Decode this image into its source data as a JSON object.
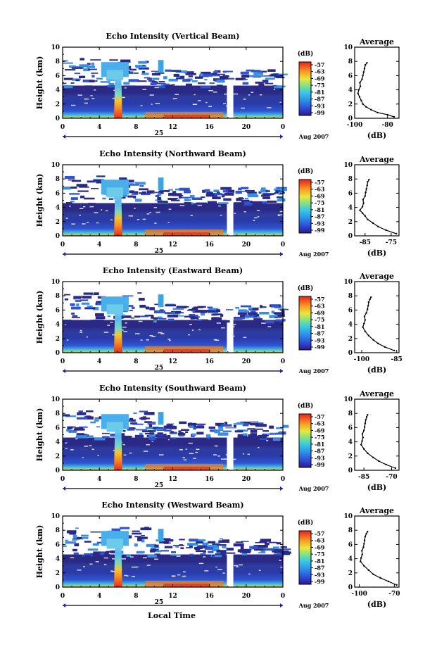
{
  "figure": {
    "y_label": "Height (km)",
    "x_label": "Local Time",
    "date_day": "25",
    "date_month_year": "Aug 2007",
    "colorbar_unit": "(dB)",
    "average_title": "Average",
    "average_xlabel": "(dB)"
  },
  "chart_data": [
    {
      "type": "heatmap",
      "title": "Echo Intensity (Vertical Beam)",
      "x_ticks": [
        "0",
        "4",
        "8",
        "12",
        "16",
        "20",
        "0"
      ],
      "y_ticks": [
        "0",
        "2",
        "4",
        "6",
        "8",
        "10"
      ],
      "xlim": [
        0,
        24
      ],
      "ylim": [
        0,
        10
      ],
      "colorbar_ticks": [
        "-57",
        "-63",
        "-69",
        "-75",
        "-81",
        "-87",
        "-93",
        "-99"
      ],
      "profile": {
        "title": "Average",
        "xlabel": "(dB)",
        "x_ticks": [
          "-100",
          "-80"
        ],
        "xlim": [
          -100,
          -73
        ],
        "y_ticks": [
          "0",
          "2",
          "4",
          "6",
          "8",
          "10"
        ],
        "ylim": [
          0,
          10
        ],
        "points": [
          [
            -76,
            0.2
          ],
          [
            -80,
            0.5
          ],
          [
            -86,
            0.8
          ],
          [
            -90,
            1.2
          ],
          [
            -93,
            1.6
          ],
          [
            -95,
            2.0
          ],
          [
            -96,
            2.5
          ],
          [
            -97,
            3.0
          ],
          [
            -98,
            3.5
          ],
          [
            -97.5,
            4.0
          ],
          [
            -96.5,
            4.5
          ],
          [
            -96.8,
            5.0
          ],
          [
            -95.5,
            5.5
          ],
          [
            -95,
            6.0
          ],
          [
            -94.5,
            6.5
          ],
          [
            -94,
            7.0
          ],
          [
            -93.5,
            7.5
          ],
          [
            -92.5,
            7.8
          ]
        ]
      }
    },
    {
      "type": "heatmap",
      "title": "Echo Intensity (Northward Beam)",
      "x_ticks": [
        "0",
        "4",
        "8",
        "12",
        "16",
        "20",
        "0"
      ],
      "y_ticks": [
        "0",
        "2",
        "4",
        "6",
        "8",
        "10"
      ],
      "xlim": [
        0,
        24
      ],
      "ylim": [
        0,
        10
      ],
      "colorbar_ticks": [
        "-57",
        "-63",
        "-69",
        "-75",
        "-81",
        "-87",
        "-93",
        "-99"
      ],
      "profile": {
        "title": "Average",
        "xlabel": "(dB)",
        "x_ticks": [
          "-85",
          "-75"
        ],
        "xlim": [
          -89,
          -72
        ],
        "y_ticks": [
          "0",
          "2",
          "4",
          "6",
          "8",
          "10"
        ],
        "ylim": [
          0,
          10
        ],
        "points": [
          [
            -73,
            0.3
          ],
          [
            -77,
            0.8
          ],
          [
            -80,
            1.3
          ],
          [
            -82,
            1.8
          ],
          [
            -84,
            2.3
          ],
          [
            -85,
            2.8
          ],
          [
            -86,
            3.2
          ],
          [
            -87,
            3.6
          ],
          [
            -86,
            4.1
          ],
          [
            -85.6,
            4.6
          ],
          [
            -85.8,
            5.1
          ],
          [
            -85,
            5.6
          ],
          [
            -84.8,
            6.1
          ],
          [
            -84.5,
            6.6
          ],
          [
            -84.2,
            7.1
          ],
          [
            -84,
            7.6
          ],
          [
            -83.5,
            7.9
          ]
        ]
      }
    },
    {
      "type": "heatmap",
      "title": "Echo Intensity (Eastward Beam)",
      "x_ticks": [
        "0",
        "4",
        "8",
        "12",
        "16",
        "20",
        "0"
      ],
      "y_ticks": [
        "0",
        "2",
        "4",
        "6",
        "8",
        "10"
      ],
      "xlim": [
        0,
        24
      ],
      "ylim": [
        0,
        10
      ],
      "colorbar_ticks": [
        "-57",
        "-63",
        "-69",
        "-75",
        "-81",
        "-87",
        "-93",
        "-99"
      ],
      "profile": {
        "title": "Average",
        "xlabel": "(dB)",
        "x_ticks": [
          "-100",
          "-85"
        ],
        "xlim": [
          -103,
          -84
        ],
        "y_ticks": [
          "0",
          "2",
          "4",
          "6",
          "8",
          "10"
        ],
        "ylim": [
          0,
          10
        ],
        "points": [
          [
            -86,
            0.3
          ],
          [
            -90,
            0.8
          ],
          [
            -93,
            1.3
          ],
          [
            -95,
            1.8
          ],
          [
            -97,
            2.4
          ],
          [
            -98.5,
            3.0
          ],
          [
            -99.5,
            3.6
          ],
          [
            -99,
            4.1
          ],
          [
            -98.5,
            4.6
          ],
          [
            -98.8,
            5.1
          ],
          [
            -98,
            5.6
          ],
          [
            -97.5,
            6.1
          ],
          [
            -97.2,
            6.6
          ],
          [
            -97,
            7.1
          ],
          [
            -96.5,
            7.5
          ],
          [
            -96,
            7.8
          ]
        ]
      }
    },
    {
      "type": "heatmap",
      "title": "Echo Intensity (Southward Beam)",
      "x_ticks": [
        "0",
        "4",
        "8",
        "12",
        "16",
        "20",
        "0"
      ],
      "y_ticks": [
        "0",
        "2",
        "4",
        "6",
        "8",
        "10"
      ],
      "xlim": [
        0,
        24
      ],
      "ylim": [
        0,
        10
      ],
      "colorbar_ticks": [
        "-57",
        "-63",
        "-69",
        "-75",
        "-81",
        "-87",
        "-93",
        "-99"
      ],
      "profile": {
        "title": "Average",
        "xlabel": "(dB)",
        "x_ticks": [
          "-85",
          "-70"
        ],
        "xlim": [
          -90,
          -66
        ],
        "y_ticks": [
          "0",
          "2",
          "4",
          "6",
          "8",
          "10"
        ],
        "ylim": [
          0,
          10
        ],
        "points": [
          [
            -68,
            0.3
          ],
          [
            -73,
            0.8
          ],
          [
            -77,
            1.3
          ],
          [
            -80,
            1.8
          ],
          [
            -83,
            2.4
          ],
          [
            -85,
            3.0
          ],
          [
            -86.5,
            3.6
          ],
          [
            -86,
            4.1
          ],
          [
            -85.5,
            4.6
          ],
          [
            -85.8,
            5.1
          ],
          [
            -85,
            5.6
          ],
          [
            -84.6,
            6.1
          ],
          [
            -84.3,
            6.6
          ],
          [
            -84,
            7.1
          ],
          [
            -83.5,
            7.5
          ],
          [
            -83,
            7.8
          ]
        ]
      }
    },
    {
      "type": "heatmap",
      "title": "Echo Intensity (Westward Beam)",
      "x_ticks": [
        "0",
        "4",
        "8",
        "12",
        "16",
        "20",
        "0"
      ],
      "y_ticks": [
        "0",
        "2",
        "4",
        "6",
        "8",
        "10"
      ],
      "xlim": [
        0,
        24
      ],
      "ylim": [
        0,
        10
      ],
      "colorbar_ticks": [
        "-57",
        "-63",
        "-69",
        "-75",
        "-81",
        "-87",
        "-93",
        "-99"
      ],
      "profile": {
        "title": "Average",
        "xlabel": "(dB)",
        "x_ticks": [
          "-100",
          "-70"
        ],
        "xlim": [
          -104,
          -66
        ],
        "y_ticks": [
          "0",
          "2",
          "4",
          "6",
          "8",
          "10"
        ],
        "ylim": [
          0,
          10
        ],
        "points": [
          [
            -68,
            0.3
          ],
          [
            -75,
            0.8
          ],
          [
            -82,
            1.3
          ],
          [
            -88,
            1.8
          ],
          [
            -92,
            2.4
          ],
          [
            -96,
            3.0
          ],
          [
            -99,
            3.6
          ],
          [
            -98.5,
            4.1
          ],
          [
            -97.5,
            4.6
          ],
          [
            -97.8,
            5.1
          ],
          [
            -96.5,
            5.6
          ],
          [
            -96,
            6.1
          ],
          [
            -95.5,
            6.6
          ],
          [
            -95,
            7.1
          ],
          [
            -94,
            7.5
          ],
          [
            -93,
            7.8
          ]
        ]
      }
    }
  ]
}
